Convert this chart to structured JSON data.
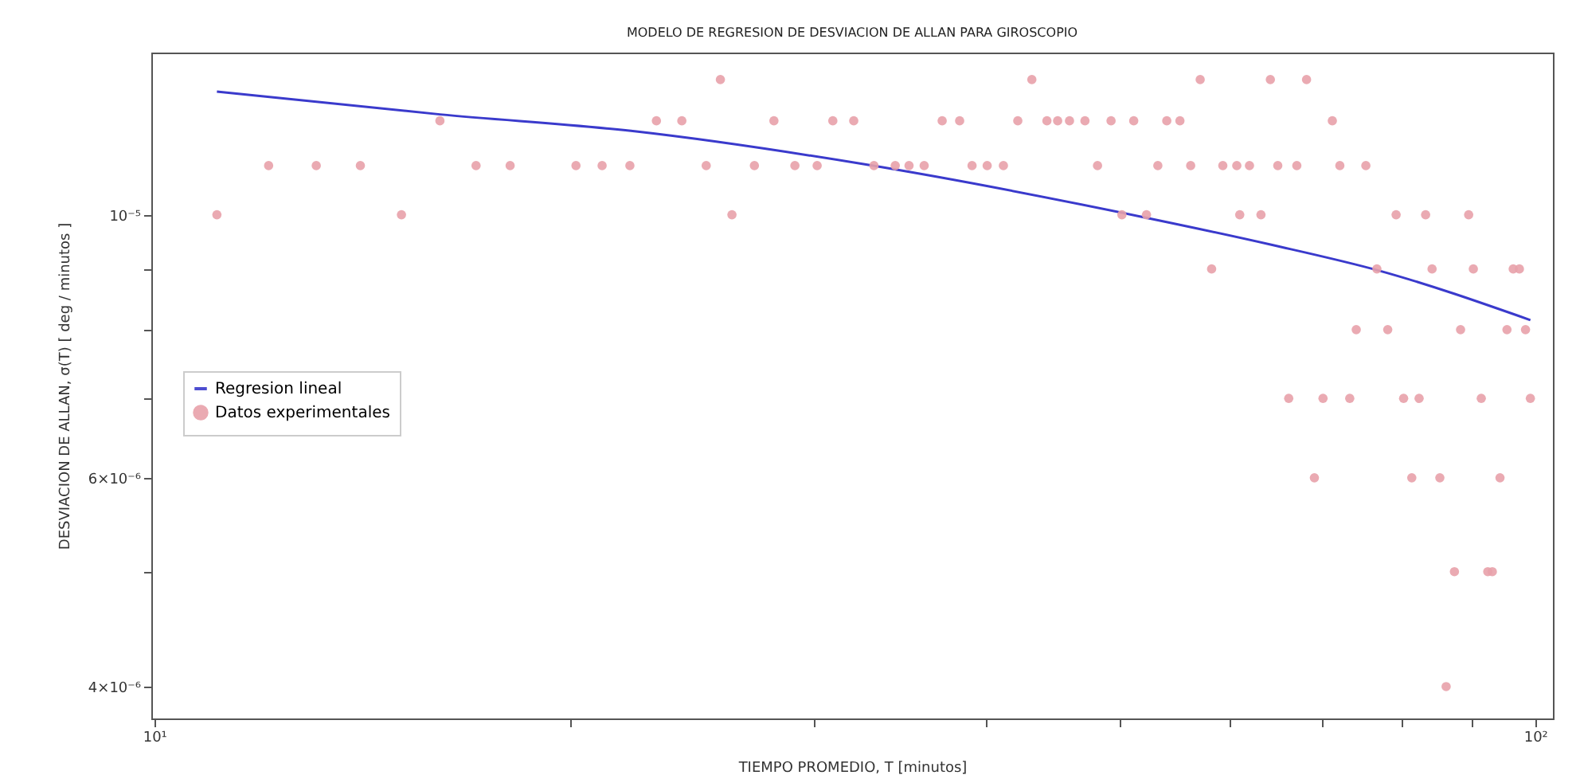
{
  "chart_data": {
    "type": "scatter",
    "title": "MODELO DE REGRESION DE DESVIACION DE ALLAN PARA GIROSCOPIO",
    "xlabel": "TIEMPO PROMEDIO, T [minutos]",
    "ylabel": "DESVIACION DE ALLAN, σ(T) [ deg / minutos ]",
    "log": "xy",
    "legend": "left",
    "grid": false,
    "xlim": [
      9.95,
      103
    ],
    "ylim": [
      3.76e-06,
      1.37e-05
    ],
    "xticks": [
      {
        "value": 10,
        "label": "10¹"
      },
      {
        "value": 20,
        "label": null
      },
      {
        "value": 30,
        "label": null
      },
      {
        "value": 40,
        "label": null
      },
      {
        "value": 50,
        "label": null
      },
      {
        "value": 60,
        "label": null
      },
      {
        "value": 70,
        "label": null
      },
      {
        "value": 80,
        "label": null
      },
      {
        "value": 90,
        "label": null
      },
      {
        "value": 100,
        "label": "10²"
      }
    ],
    "yticks": [
      {
        "value": 4e-06,
        "label": "4×10⁻⁶"
      },
      {
        "value": 5e-06,
        "label": null
      },
      {
        "value": 6e-06,
        "label": "6×10⁻⁶"
      },
      {
        "value": 7e-06,
        "label": null
      },
      {
        "value": 8e-06,
        "label": null
      },
      {
        "value": 9e-06,
        "label": null
      },
      {
        "value": 1e-05,
        "label": "10⁻⁵"
      }
    ],
    "series": [
      {
        "name": "Regresion lineal",
        "type": "line",
        "color": "#3a3acc",
        "x": [
          11.1,
          16.1,
          22.4,
          32.5,
          52.3,
          64.5,
          77.1,
          99.2
        ],
        "values": [
          1.27e-05,
          1.215e-05,
          1.175e-05,
          1.104e-05,
          9.94e-06,
          9.43e-06,
          8.97e-06,
          8.15e-06
        ]
      },
      {
        "name": "Datos experimentales",
        "type": "scatter",
        "color": "#e8a1aa",
        "marker": "circle",
        "x": [
          25.7,
          43.2,
          57.2,
          64.3,
          68.3,
          16.1,
          23.1,
          24.1,
          28.1,
          31.0,
          32.1,
          37.2,
          38.3,
          42.2,
          44.3,
          45.1,
          46.0,
          47.2,
          49.3,
          51.2,
          54.1,
          55.3,
          71.3,
          12.1,
          13.1,
          14.1,
          17.1,
          18.1,
          20.2,
          21.1,
          22.1,
          25.1,
          27.2,
          29.1,
          30.2,
          33.2,
          34.4,
          35.2,
          36.1,
          39.1,
          40.1,
          41.2,
          48.2,
          53.3,
          56.3,
          59.4,
          60.8,
          62.1,
          65.1,
          67.2,
          72.2,
          75.4,
          11.1,
          15.1,
          26.2,
          50.2,
          52.3,
          61.1,
          63.3,
          79.3,
          83.3,
          89.5,
          58.3,
          76.8,
          84.2,
          90.2,
          96.4,
          97.4,
          74.2,
          78.2,
          88.3,
          95.4,
          98.4,
          66.3,
          70.2,
          73.4,
          80.3,
          82.4,
          91.4,
          99.2,
          69.2,
          81.4,
          85.3,
          94.3,
          87.4,
          92.4,
          93.1,
          86.2
        ],
        "values": [
          1.3e-05,
          1.3e-05,
          1.3e-05,
          1.3e-05,
          1.3e-05,
          1.2e-05,
          1.2e-05,
          1.2e-05,
          1.2e-05,
          1.2e-05,
          1.2e-05,
          1.2e-05,
          1.2e-05,
          1.2e-05,
          1.2e-05,
          1.2e-05,
          1.2e-05,
          1.2e-05,
          1.2e-05,
          1.2e-05,
          1.2e-05,
          1.2e-05,
          1.2e-05,
          1.1e-05,
          1.1e-05,
          1.1e-05,
          1.1e-05,
          1.1e-05,
          1.1e-05,
          1.1e-05,
          1.1e-05,
          1.1e-05,
          1.1e-05,
          1.1e-05,
          1.1e-05,
          1.1e-05,
          1.1e-05,
          1.1e-05,
          1.1e-05,
          1.1e-05,
          1.1e-05,
          1.1e-05,
          1.1e-05,
          1.1e-05,
          1.1e-05,
          1.1e-05,
          1.1e-05,
          1.1e-05,
          1.1e-05,
          1.1e-05,
          1.1e-05,
          1.1e-05,
          1e-05,
          1e-05,
          1e-05,
          1e-05,
          1e-05,
          1e-05,
          1e-05,
          1e-05,
          1e-05,
          1e-05,
          9e-06,
          9e-06,
          9e-06,
          9e-06,
          9e-06,
          9e-06,
          8e-06,
          8e-06,
          8e-06,
          8e-06,
          8e-06,
          7e-06,
          7e-06,
          7e-06,
          7e-06,
          7e-06,
          7e-06,
          7e-06,
          6e-06,
          6e-06,
          6e-06,
          6e-06,
          5e-06,
          5e-06,
          5e-06,
          4e-06
        ]
      }
    ]
  }
}
